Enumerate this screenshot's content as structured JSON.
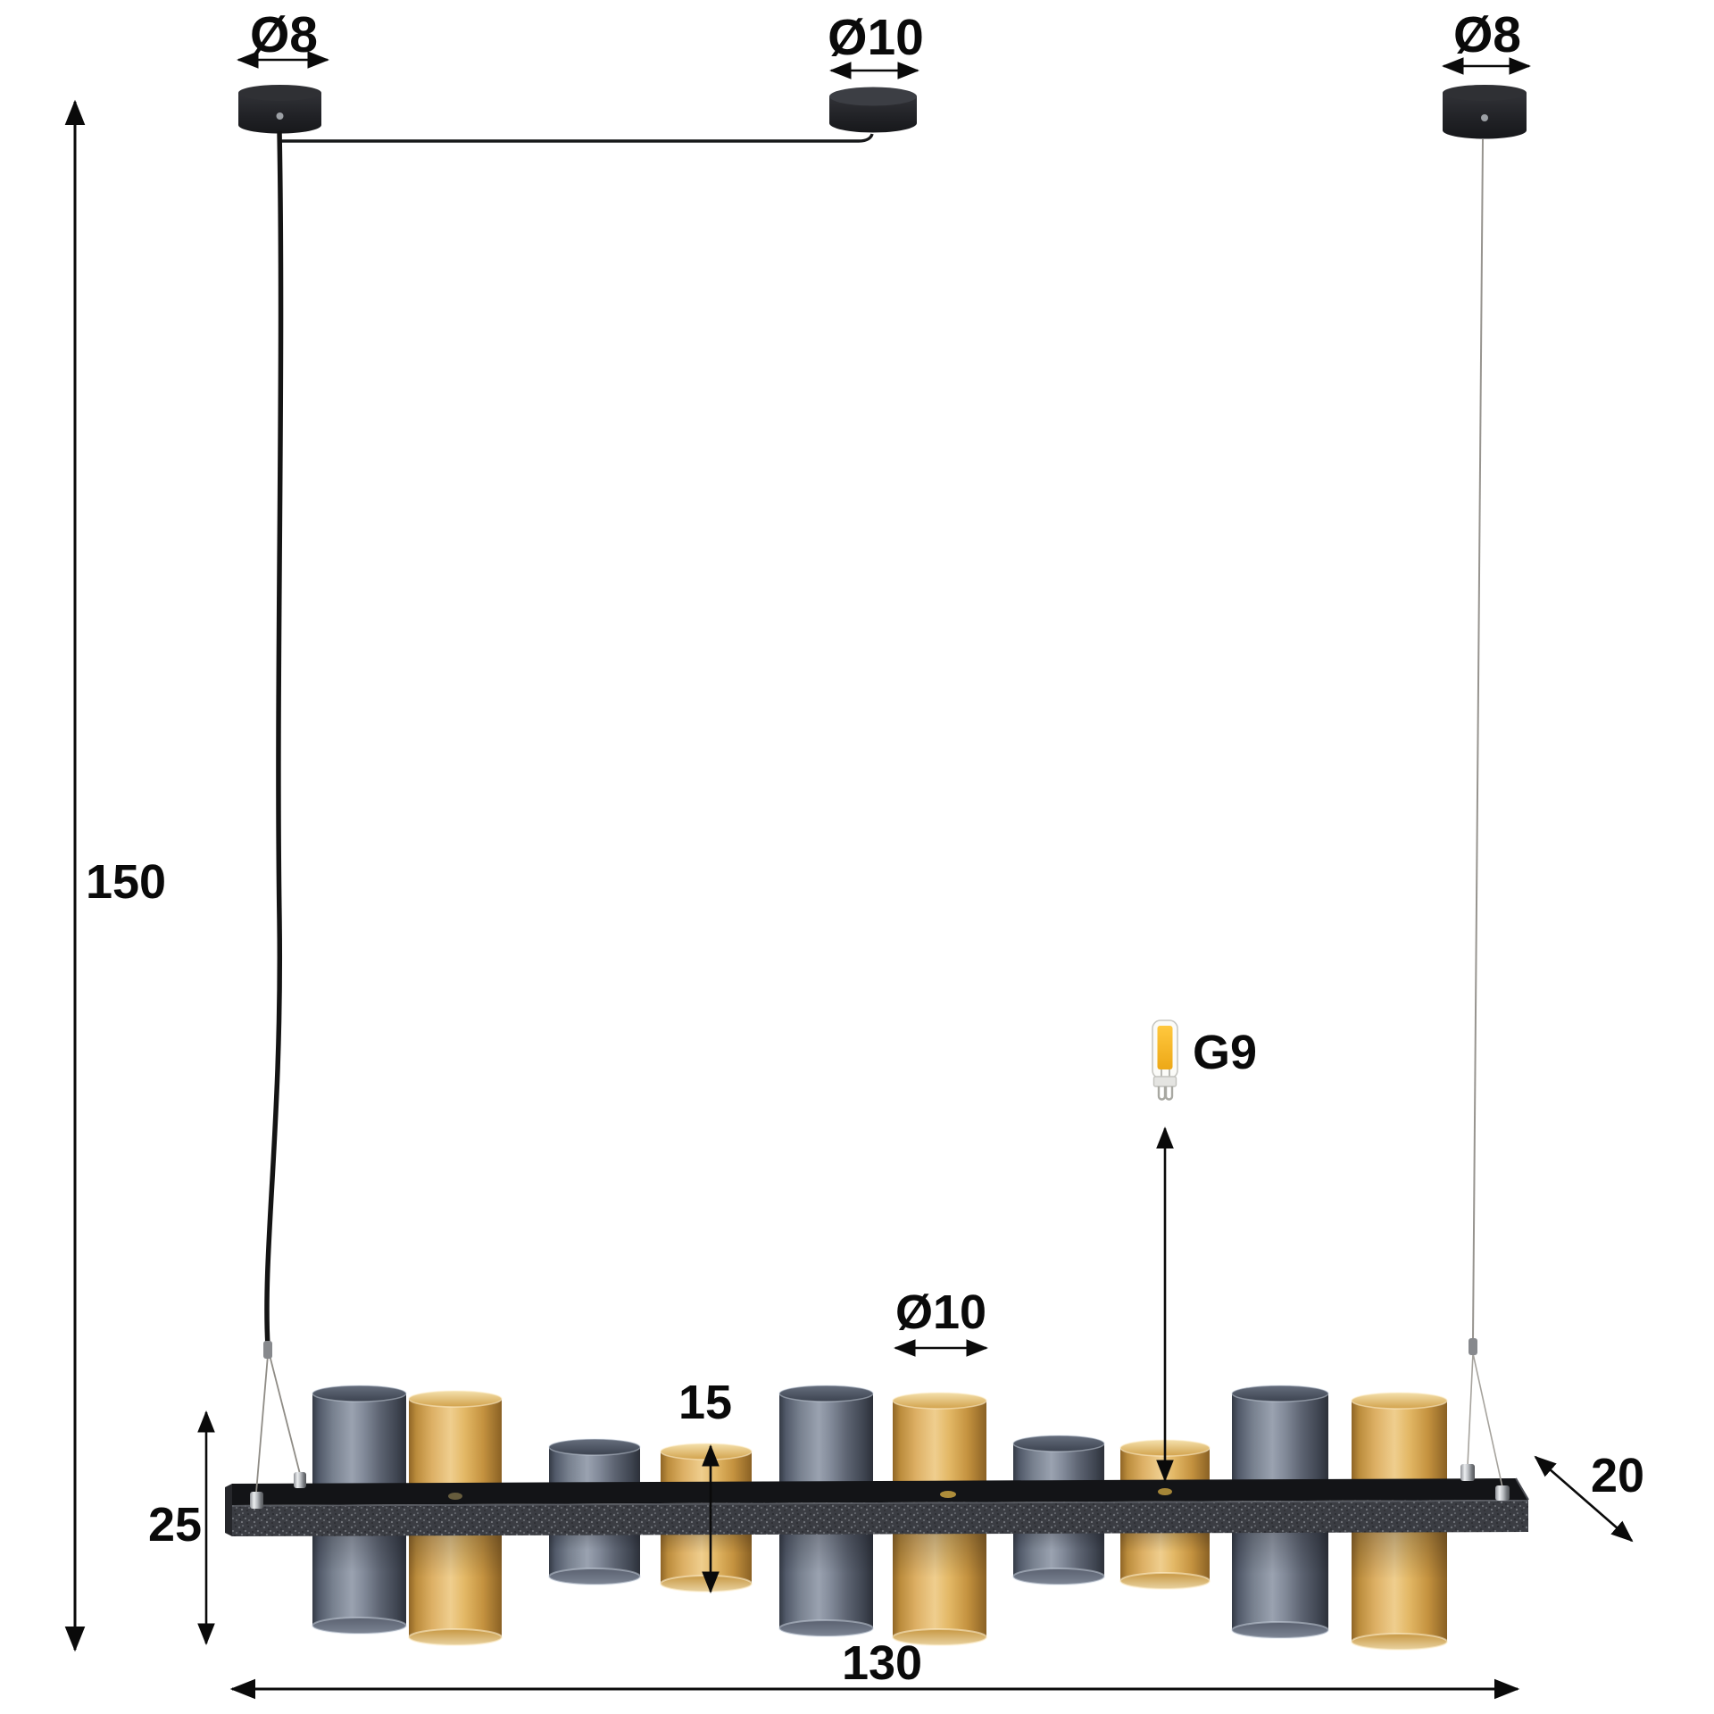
{
  "labels": {
    "canopy_left_diameter": "Ø8",
    "canopy_middle_diameter": "Ø10",
    "canopy_right_diameter": "Ø8",
    "drop_height": "150",
    "fixture_height": "25",
    "small_shade_height": "15",
    "shade_diameter": "Ø10",
    "fixture_depth": "20",
    "fixture_width": "130",
    "bulb_socket": "G9"
  },
  "lamp": {
    "type": "linear pendant with cylindrical glass shades",
    "canopies": 3,
    "shades": [
      {
        "color": "smoke",
        "size": "tall"
      },
      {
        "color": "amber",
        "size": "tall"
      },
      {
        "color": "smoke",
        "size": "short"
      },
      {
        "color": "amber",
        "size": "short"
      },
      {
        "color": "smoke",
        "size": "tall"
      },
      {
        "color": "amber",
        "size": "tall"
      },
      {
        "color": "smoke",
        "size": "short"
      },
      {
        "color": "amber",
        "size": "short"
      },
      {
        "color": "smoke",
        "size": "tall"
      },
      {
        "color": "amber",
        "size": "tall"
      }
    ],
    "colors": {
      "smoke_glass": "#8a92a2",
      "amber_glass": "#dfae58",
      "frame_black": "#3a3c42",
      "dimension_ink": "#0a0a0a",
      "bulb_led_amber": "#f2b32a"
    }
  }
}
